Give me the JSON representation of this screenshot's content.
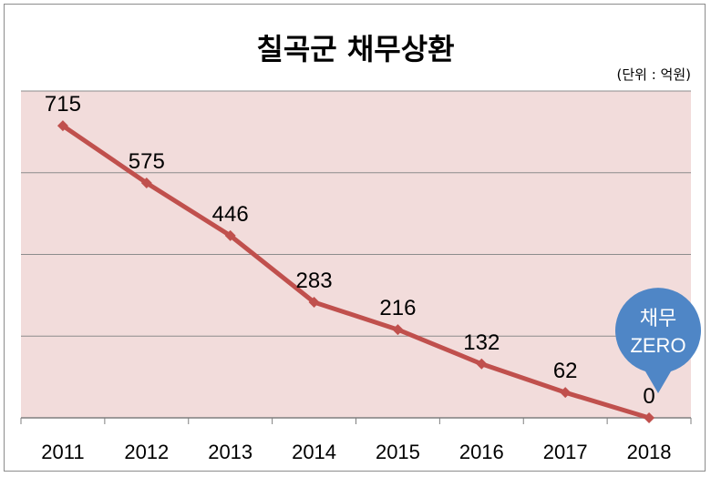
{
  "chart_data": {
    "type": "line",
    "title": "칠곡군 채무상환",
    "unit": "(단위 : 억원)",
    "x": [
      "2011",
      "2012",
      "2013",
      "2014",
      "2015",
      "2016",
      "2017",
      "2018"
    ],
    "series": [
      {
        "values": [
          715,
          575,
          446,
          283,
          216,
          132,
          62,
          0
        ]
      }
    ],
    "ylim": [
      0,
      800
    ],
    "grid": true,
    "callout": {
      "line1": "채무",
      "line2": "ZERO"
    },
    "colors": {
      "line": "#c0504d",
      "plot_bg": "#f2dcdb",
      "callout": "#4f86c6",
      "grid": "#8c8c8c"
    }
  }
}
